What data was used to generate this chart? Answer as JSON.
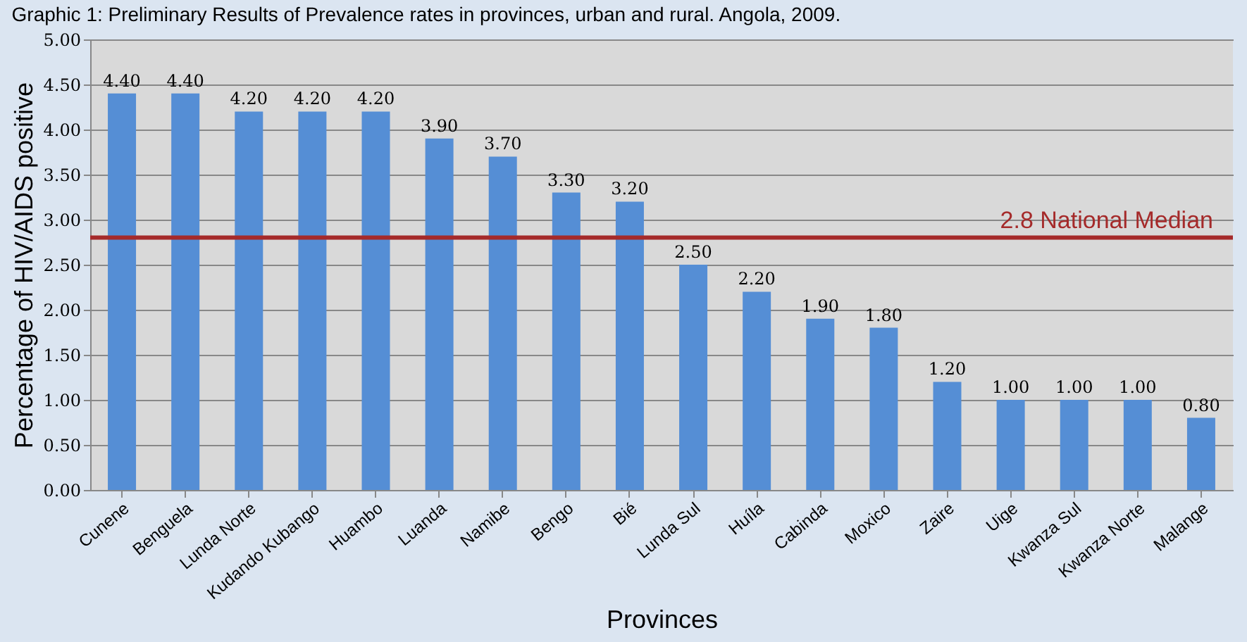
{
  "chart_data": {
    "type": "bar",
    "title": "Graphic 1: Preliminary Results of Prevalence rates in provinces, urban and rural. Angola, 2009.",
    "xlabel": "Provinces",
    "ylabel": "Percentage of HIV/AIDS  positive",
    "categories": [
      "Cunene",
      "Benguela",
      "Lunda Norte",
      "Kudando Kubango",
      "Huambo",
      "Luanda",
      "Namibe",
      "Bengo",
      "Bié",
      "Lunda Sul",
      "Huíla",
      "Cabinda",
      "Moxico",
      "Zaire",
      "Uige",
      "Kwanza Sul",
      "Kwanza Norte",
      "Malange"
    ],
    "values": [
      4.4,
      4.4,
      4.2,
      4.2,
      4.2,
      3.9,
      3.7,
      3.3,
      3.2,
      2.5,
      2.2,
      1.9,
      1.8,
      1.2,
      1.0,
      1.0,
      1.0,
      0.8
    ],
    "value_labels": [
      "4.40",
      "4.40",
      "4.20",
      "4.20",
      "4.20",
      "3.90",
      "3.70",
      "3.30",
      "3.20",
      "2.50",
      "2.20",
      "1.90",
      "1.80",
      "1.20",
      "1.00",
      "1.00",
      "1.00",
      "0.80"
    ],
    "color": "#558ed5",
    "ylim": [
      0,
      5
    ],
    "yticks": [
      {
        "value": 0,
        "label": "0.00"
      },
      {
        "value": 0.5,
        "label": "0.50"
      },
      {
        "value": 1,
        "label": "1.00"
      },
      {
        "value": 1.5,
        "label": "1.50"
      },
      {
        "value": 2,
        "label": "2.00"
      },
      {
        "value": 2.5,
        "label": "2.50"
      },
      {
        "value": 3,
        "label": "3.00"
      },
      {
        "value": 3.5,
        "label": "3.50"
      },
      {
        "value": 4,
        "label": "4.00"
      },
      {
        "value": 4.5,
        "label": "4.50"
      },
      {
        "value": 5,
        "label": "5.00"
      }
    ],
    "grid": "y",
    "ref_lines": [
      {
        "axis": "y",
        "value": 2.8,
        "label": "2.8 National Median",
        "color": "#a52a2a"
      }
    ]
  }
}
